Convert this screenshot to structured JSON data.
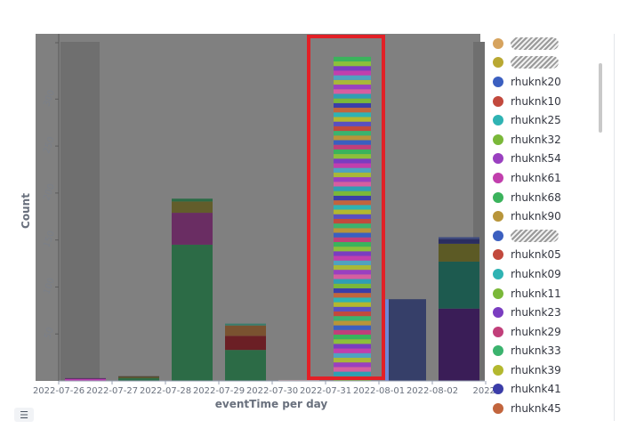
{
  "chart_data": {
    "type": "bar",
    "xlabel": "eventTime per day",
    "ylabel": "Count",
    "ylim": [
      0,
      360
    ],
    "yticks": [
      50,
      100,
      150,
      200,
      250,
      300
    ],
    "categories": [
      "2022-07-26",
      "2022-07-27",
      "2022-07-28",
      "2022-07-29",
      "2022-07-30",
      "2022-07-31",
      "2022-08-01",
      "2022-08-02",
      "2022-"
    ],
    "bars": [
      {
        "x": "2022-07-26",
        "segments": [
          {
            "value": 2,
            "color": "#b83dad"
          },
          {
            "value": 1,
            "color": "#5c2a6b"
          }
        ]
      },
      {
        "x": "2022-07-27",
        "segments": [
          {
            "value": 3,
            "color": "#2c6b46"
          },
          {
            "value": 1,
            "color": "#5c5a25"
          },
          {
            "value": 1,
            "color": "#4b3d2a"
          }
        ]
      },
      {
        "x": "2022-07-28",
        "segments": [
          {
            "value": 145,
            "color": "#2c6b46"
          },
          {
            "value": 34,
            "color": "#6a2d63"
          },
          {
            "value": 12,
            "color": "#625d2b"
          },
          {
            "value": 3,
            "color": "#2c6b46"
          }
        ]
      },
      {
        "x": "2022-07-29",
        "segments": [
          {
            "value": 33,
            "color": "#2c6b46"
          },
          {
            "value": 15,
            "color": "#6b1f25"
          },
          {
            "value": 11,
            "color": "#7a5230"
          },
          {
            "value": 2,
            "color": "#3a7d6b"
          }
        ]
      },
      {
        "x": "2022-07-30",
        "segments": [
          {
            "value": 1,
            "color": "#c9a3a3"
          }
        ]
      },
      {
        "x": "2022-07-31",
        "total": 345
      },
      {
        "x": "2022-08-01",
        "segments": [
          {
            "value": 87,
            "color": "#363f69"
          }
        ]
      },
      {
        "x": "2022-08-02",
        "segments": [
          {
            "value": 77,
            "color": "#3a1d57"
          },
          {
            "value": 50,
            "color": "#1d5a4f"
          },
          {
            "value": 19,
            "color": "#5c5a25"
          },
          {
            "value": 5,
            "color": "#2a2d60"
          },
          {
            "value": 2,
            "color": "#3d4a80"
          }
        ]
      }
    ],
    "legend_position": "right",
    "highlighted_category": "2022-07-31",
    "highlight_color": "#e22026",
    "background_color": "#808080"
  },
  "legend": {
    "items": [
      {
        "label": "",
        "color": "#d6a35e",
        "redacted": true
      },
      {
        "label": "",
        "color": "#b9a832",
        "redacted": true
      },
      {
        "label": "rhuknk20",
        "color": "#3b5fc0"
      },
      {
        "label": "rhuknk10",
        "color": "#c2493d"
      },
      {
        "label": "rhuknk25",
        "color": "#2fb3b3"
      },
      {
        "label": "rhuknk32",
        "color": "#7ab839"
      },
      {
        "label": "rhuknk54",
        "color": "#9a40c0"
      },
      {
        "label": "rhuknk61",
        "color": "#c13fad"
      },
      {
        "label": "rhuknk68",
        "color": "#3bb35c"
      },
      {
        "label": "rhuknk90",
        "color": "#b8953a"
      },
      {
        "label": "",
        "color": "#3b5fc0",
        "redacted": true
      },
      {
        "label": "rhuknk05",
        "color": "#c2493d"
      },
      {
        "label": "rhuknk09",
        "color": "#2fb3b3"
      },
      {
        "label": "rhuknk11",
        "color": "#7ab839"
      },
      {
        "label": "rhuknk23",
        "color": "#7a3dc0"
      },
      {
        "label": "rhuknk29",
        "color": "#c13f7a"
      },
      {
        "label": "rhuknk33",
        "color": "#3bb36e"
      },
      {
        "label": "rhuknk39",
        "color": "#b3b82f"
      },
      {
        "label": "rhuknk41",
        "color": "#3b3da8"
      },
      {
        "label": "rhuknk45",
        "color": "#c2653d"
      }
    ]
  },
  "legend_toggle_icon": "list-icon"
}
